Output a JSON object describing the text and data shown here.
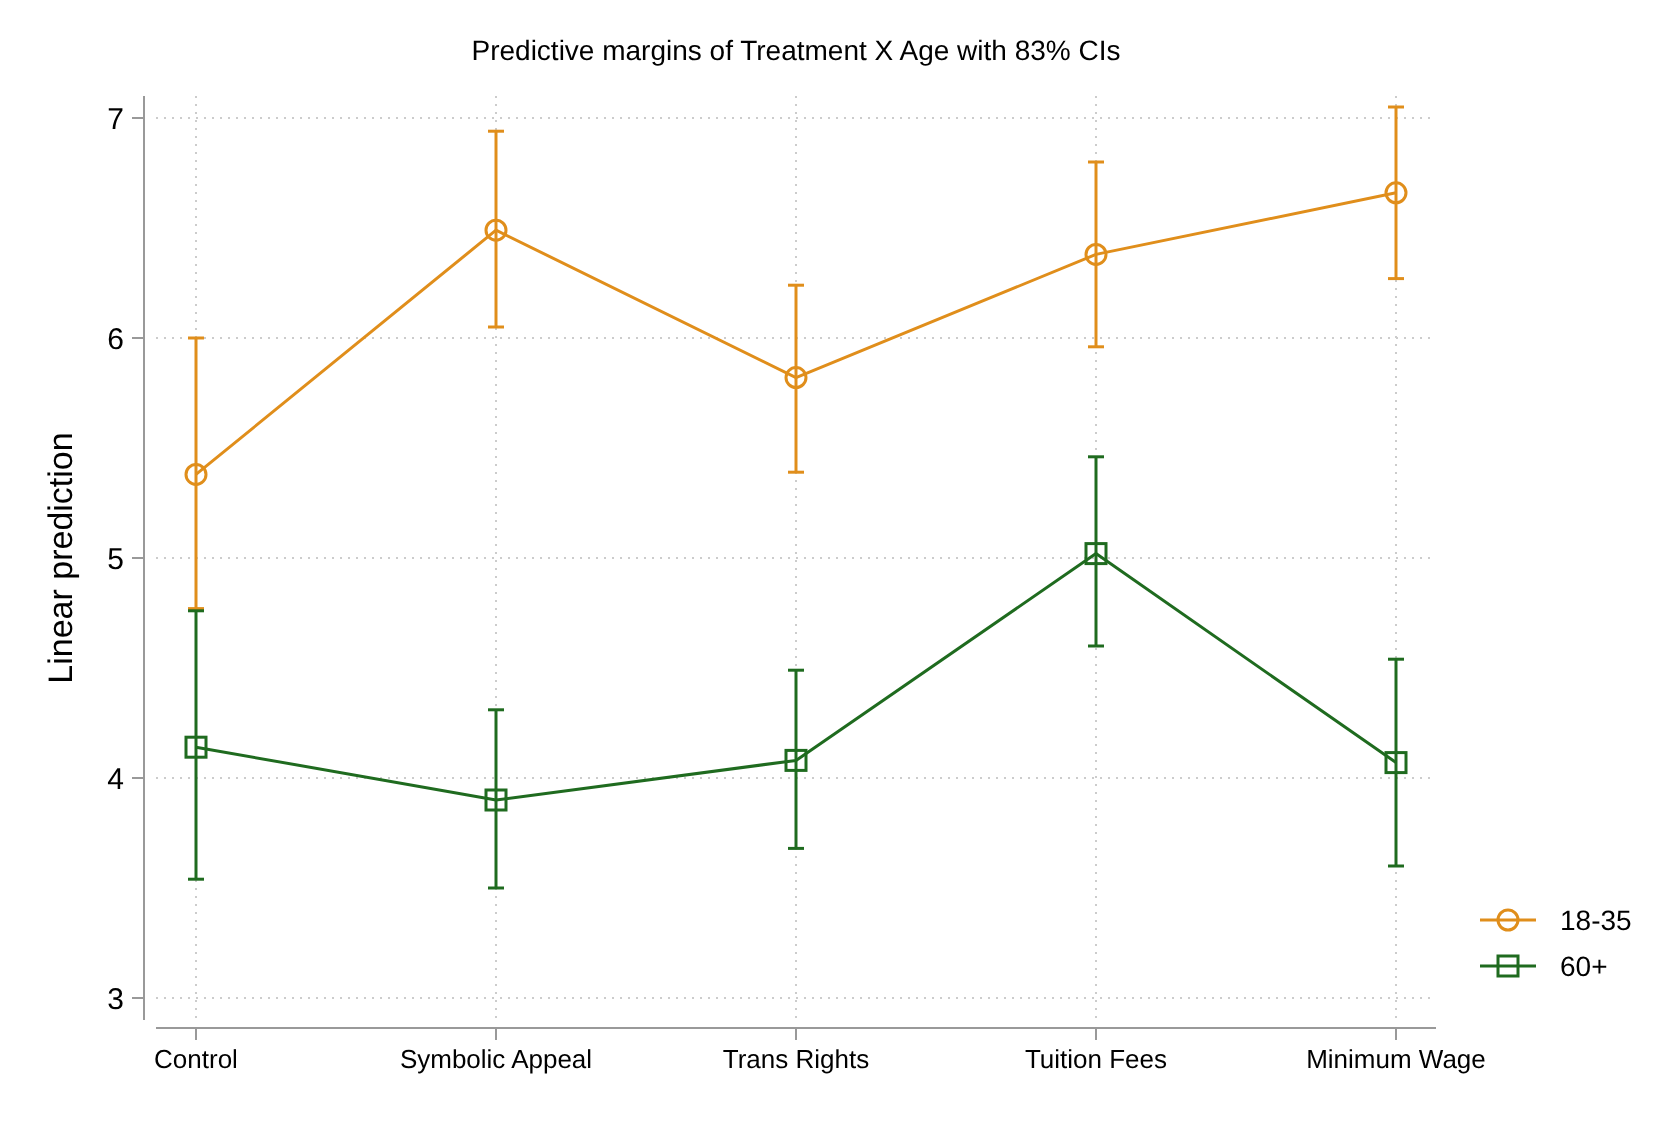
{
  "chart_data": {
    "type": "line",
    "title": "Predictive margins of Treatment X Age with 83% CIs",
    "ylabel": "Linear prediction",
    "categories": [
      "Control",
      "Symbolic Appeal",
      "Trans Rights",
      "Tuition Fees",
      "Minimum Wage"
    ],
    "series": [
      {
        "name": "18-35",
        "color": "#e08e1b",
        "marker": "circle",
        "values": [
          5.38,
          6.49,
          5.82,
          6.38,
          6.66
        ],
        "errors": [
          [
            4.77,
            6.0
          ],
          [
            6.05,
            6.94
          ],
          [
            5.39,
            6.24
          ],
          [
            5.96,
            6.8
          ],
          [
            6.27,
            7.05
          ]
        ]
      },
      {
        "name": "60+",
        "color": "#1f6b1f",
        "marker": "square",
        "values": [
          4.14,
          3.9,
          4.08,
          5.02,
          4.07
        ],
        "errors": [
          [
            3.54,
            4.76
          ],
          [
            3.5,
            4.31
          ],
          [
            3.68,
            4.49
          ],
          [
            4.6,
            5.46
          ],
          [
            3.6,
            4.54
          ]
        ]
      }
    ],
    "ylim": [
      2.9,
      7.1
    ],
    "yticks": [
      3,
      4,
      5,
      6,
      7
    ],
    "grid": true,
    "legend": "bottom right",
    "line_style": "solid"
  }
}
